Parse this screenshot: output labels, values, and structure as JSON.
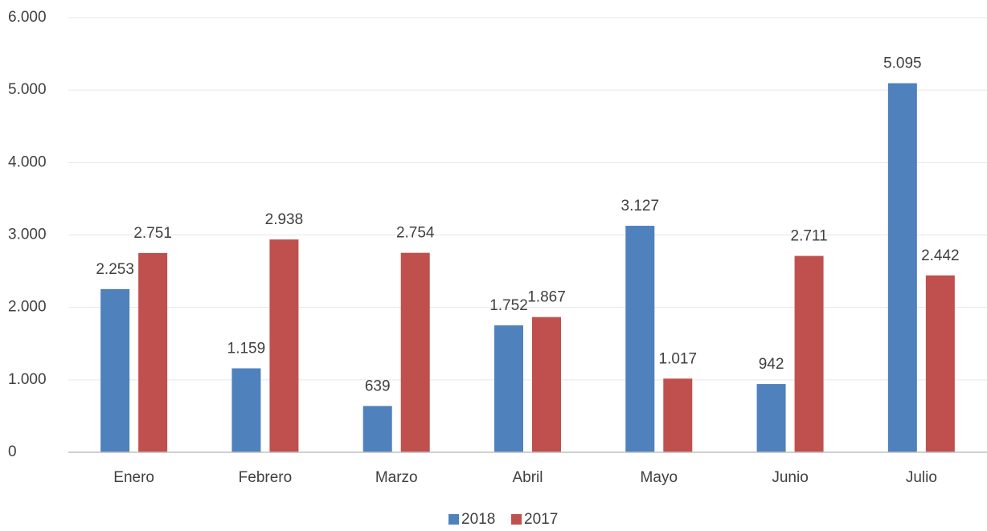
{
  "chart_data": {
    "type": "bar",
    "categories": [
      "Enero",
      "Febrero",
      "Marzo",
      "Abril",
      "Mayo",
      "Junio",
      "Julio"
    ],
    "series": [
      {
        "name": "2018",
        "color": "#4f81bd",
        "values": [
          2253,
          1159,
          639,
          1752,
          3127,
          942,
          5095
        ],
        "value_labels": [
          "2.253",
          "1.159",
          "639",
          "1.752",
          "3.127",
          "942",
          "5.095"
        ]
      },
      {
        "name": "2017",
        "color": "#c0504d",
        "values": [
          2751,
          2938,
          2754,
          1867,
          1017,
          2711,
          2442
        ],
        "value_labels": [
          "2.751",
          "2.938",
          "2.754",
          "1.867",
          "1.017",
          "2.711",
          "2.442"
        ]
      }
    ],
    "ylim": [
      0,
      6000
    ],
    "yticks": [
      0,
      {
        "value": 1000,
        "label": "1.000"
      },
      {
        "value": 2000,
        "label": "2.000"
      },
      {
        "value": 3000,
        "label": "3.000"
      },
      {
        "value": 4000,
        "label": "4.000"
      },
      {
        "value": 5000,
        "label": "5.000"
      },
      {
        "value": 6000,
        "label": "6.000"
      }
    ],
    "grid": true,
    "legend": "bottom"
  }
}
